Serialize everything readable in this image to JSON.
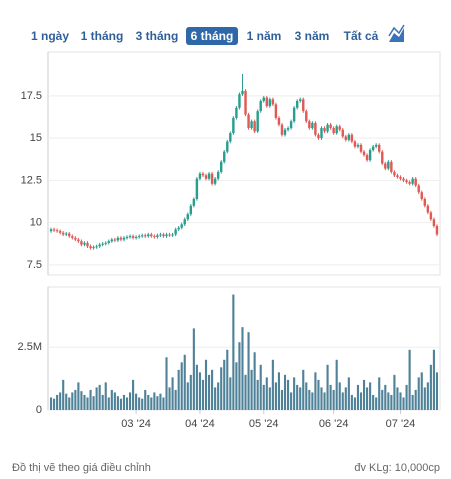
{
  "range_buttons": [
    "1 ngày",
    "1 tháng",
    "3 tháng",
    "6 tháng",
    "1 năm",
    "3 năm",
    "Tất cả"
  ],
  "active_button": 3,
  "footer": {
    "note": "Đồ thị vẽ theo giá điều chỉnh",
    "unit": "đv KLg: 10,000cp"
  },
  "chart_data": [
    {
      "type": "candlestick",
      "up_color": "#2a9d8f",
      "down_color": "#e05a55",
      "grid": true,
      "xlim": [
        -1,
        128
      ],
      "ylim": [
        6.9,
        20.1
      ],
      "yticks": [
        7.5,
        10,
        12.5,
        15,
        17.5
      ],
      "open": [
        9.5,
        9.6,
        9.55,
        9.5,
        9.4,
        9.3,
        9.35,
        9.2,
        9.1,
        9.0,
        8.9,
        8.7,
        8.8,
        8.6,
        8.5,
        8.55,
        8.6,
        8.7,
        8.75,
        8.8,
        8.9,
        9.0,
        8.95,
        9.1,
        9.0,
        9.1,
        9.15,
        9.2,
        9.1,
        9.15,
        9.2,
        9.25,
        9.2,
        9.3,
        9.2,
        9.15,
        9.25,
        9.3,
        9.2,
        9.3,
        9.25,
        9.3,
        9.6,
        9.7,
        9.9,
        10.2,
        10.5,
        11.0,
        11.4,
        12.6,
        12.9,
        12.8,
        12.6,
        12.9,
        12.3,
        12.6,
        13.0,
        13.6,
        14.2,
        14.8,
        15.3,
        16.2,
        16.8,
        17.6,
        17.8,
        16.4,
        15.6,
        16.0,
        15.4,
        16.6,
        17.2,
        17.4,
        16.9,
        17.3,
        17.0,
        16.2,
        15.8,
        15.2,
        15.5,
        15.6,
        16.0,
        16.8,
        17.2,
        17.3,
        16.6,
        16.0,
        15.6,
        15.9,
        15.2,
        15.0,
        15.6,
        15.4,
        15.8,
        15.6,
        15.3,
        15.7,
        15.5,
        15.1,
        14.9,
        15.2,
        14.8,
        14.5,
        14.6,
        14.2,
        14.0,
        13.7,
        14.3,
        14.5,
        14.6,
        14.2,
        13.5,
        13.2,
        13.6,
        13.0,
        12.8,
        12.7,
        12.6,
        12.5,
        12.4,
        12.3,
        12.6,
        12.2,
        11.8,
        11.4,
        11.0,
        10.6,
        10.2,
        9.8
      ],
      "high": [
        9.7,
        9.7,
        9.65,
        9.6,
        9.5,
        9.45,
        9.45,
        9.3,
        9.2,
        9.1,
        9.0,
        8.9,
        8.9,
        8.7,
        8.65,
        8.7,
        8.8,
        8.85,
        8.9,
        9.0,
        9.1,
        9.1,
        9.2,
        9.2,
        9.2,
        9.25,
        9.3,
        9.3,
        9.25,
        9.3,
        9.35,
        9.35,
        9.4,
        9.4,
        9.3,
        9.35,
        9.4,
        9.4,
        9.4,
        9.4,
        9.4,
        9.7,
        9.8,
        10.0,
        10.3,
        10.6,
        11.1,
        11.5,
        12.7,
        13.0,
        13.0,
        12.9,
        13.0,
        13.0,
        12.7,
        13.1,
        13.7,
        14.3,
        14.9,
        15.4,
        16.3,
        16.9,
        17.7,
        18.8,
        17.9,
        16.5,
        16.1,
        16.1,
        16.7,
        17.3,
        17.5,
        17.5,
        17.4,
        17.4,
        17.1,
        16.3,
        15.9,
        15.6,
        15.7,
        16.1,
        16.9,
        17.3,
        17.4,
        17.4,
        16.7,
        16.1,
        16.0,
        16.0,
        15.3,
        15.7,
        15.7,
        15.9,
        15.9,
        15.7,
        15.8,
        15.8,
        15.6,
        15.2,
        15.3,
        15.3,
        14.9,
        14.7,
        14.7,
        14.3,
        14.1,
        14.4,
        14.6,
        14.7,
        14.7,
        14.3,
        13.6,
        13.7,
        13.7,
        13.1,
        12.9,
        12.8,
        12.7,
        12.6,
        12.5,
        12.7,
        12.7,
        12.3,
        11.9,
        11.5,
        11.1,
        10.7,
        10.3,
        9.9
      ],
      "low": [
        9.4,
        9.45,
        9.4,
        9.3,
        9.2,
        9.2,
        9.1,
        9.0,
        8.9,
        8.8,
        8.6,
        8.6,
        8.5,
        8.4,
        8.4,
        8.45,
        8.5,
        8.6,
        8.65,
        8.7,
        8.8,
        8.85,
        8.85,
        8.9,
        8.9,
        9.0,
        9.05,
        9.0,
        9.0,
        9.05,
        9.1,
        9.1,
        9.1,
        9.1,
        9.05,
        9.05,
        9.15,
        9.1,
        9.1,
        9.15,
        9.15,
        9.2,
        9.5,
        9.6,
        9.8,
        10.1,
        10.4,
        10.9,
        11.3,
        12.5,
        12.7,
        12.5,
        12.5,
        12.2,
        12.2,
        12.5,
        12.9,
        13.5,
        14.1,
        14.7,
        15.2,
        16.1,
        16.7,
        17.5,
        16.3,
        15.5,
        15.5,
        15.3,
        15.3,
        16.5,
        17.1,
        16.8,
        16.8,
        16.9,
        16.1,
        15.7,
        15.1,
        15.1,
        15.4,
        15.5,
        15.9,
        16.7,
        17.1,
        16.5,
        15.9,
        15.5,
        15.5,
        15.1,
        14.9,
        14.9,
        15.3,
        15.3,
        15.5,
        15.2,
        15.2,
        15.4,
        15.0,
        14.8,
        14.8,
        14.7,
        14.4,
        14.4,
        14.1,
        13.9,
        13.6,
        13.6,
        14.2,
        14.4,
        14.1,
        13.4,
        13.1,
        13.1,
        12.9,
        12.7,
        12.6,
        12.5,
        12.4,
        12.3,
        12.2,
        12.2,
        12.1,
        11.7,
        11.3,
        10.9,
        10.5,
        10.1,
        9.7,
        9.2
      ],
      "close": [
        9.6,
        9.55,
        9.5,
        9.4,
        9.3,
        9.35,
        9.2,
        9.1,
        9.0,
        8.9,
        8.7,
        8.8,
        8.6,
        8.5,
        8.55,
        8.6,
        8.7,
        8.75,
        8.8,
        8.9,
        9.0,
        8.95,
        9.1,
        9.0,
        9.1,
        9.15,
        9.2,
        9.1,
        9.15,
        9.2,
        9.25,
        9.2,
        9.3,
        9.2,
        9.15,
        9.25,
        9.3,
        9.2,
        9.3,
        9.25,
        9.3,
        9.6,
        9.7,
        9.9,
        10.2,
        10.5,
        11.0,
        11.4,
        12.6,
        12.9,
        12.8,
        12.6,
        12.9,
        12.3,
        12.6,
        13.0,
        13.6,
        14.2,
        14.8,
        15.3,
        16.2,
        16.8,
        17.6,
        17.8,
        16.4,
        15.6,
        16.0,
        15.4,
        16.6,
        17.2,
        17.4,
        16.9,
        17.3,
        17.0,
        16.2,
        15.8,
        15.2,
        15.5,
        15.6,
        16.0,
        16.8,
        17.2,
        17.3,
        16.6,
        16.0,
        15.6,
        15.9,
        15.2,
        15.0,
        15.6,
        15.4,
        15.8,
        15.6,
        15.3,
        15.7,
        15.5,
        15.1,
        14.9,
        15.2,
        14.8,
        14.5,
        14.6,
        14.2,
        14.0,
        13.7,
        14.3,
        14.5,
        14.6,
        14.2,
        13.5,
        13.2,
        13.6,
        13.0,
        12.8,
        12.7,
        12.6,
        12.5,
        12.4,
        12.3,
        12.6,
        12.2,
        11.8,
        11.4,
        11.0,
        10.6,
        10.2,
        9.8,
        9.3
      ]
    },
    {
      "type": "bar",
      "color": "#4f8298",
      "xlim": [
        -1,
        128
      ],
      "ylim": [
        0,
        4900000
      ],
      "yticks": [
        0,
        {
          "value": 2500000,
          "label": "2.5M"
        }
      ],
      "xticks": [
        {
          "value": 28,
          "label": "03 '24"
        },
        {
          "value": 49,
          "label": "04 '24"
        },
        {
          "value": 70,
          "label": "05 '24"
        },
        {
          "value": 93,
          "label": "06 '24"
        },
        {
          "value": 115,
          "label": "07 '24"
        }
      ],
      "values": [
        500000,
        450000,
        600000,
        700000,
        1200000,
        650000,
        500000,
        700000,
        800000,
        1100000,
        750000,
        600000,
        500000,
        800000,
        550000,
        900000,
        1000000,
        600000,
        1100000,
        500000,
        800000,
        700000,
        550000,
        450000,
        600000,
        500000,
        700000,
        1200000,
        650000,
        500000,
        450000,
        800000,
        600000,
        500000,
        700000,
        550000,
        650000,
        500000,
        2100000,
        900000,
        1300000,
        800000,
        1600000,
        1900000,
        2200000,
        1100000,
        1400000,
        3250000,
        1800000,
        1500000,
        1200000,
        2000000,
        1400000,
        1600000,
        900000,
        1100000,
        1700000,
        2000000,
        2400000,
        1300000,
        4600000,
        1900000,
        2700000,
        3300000,
        1400000,
        3100000,
        1600000,
        2300000,
        1200000,
        1800000,
        1000000,
        1300000,
        900000,
        2000000,
        1100000,
        1500000,
        800000,
        1400000,
        1200000,
        700000,
        1300000,
        1000000,
        900000,
        1600000,
        1100000,
        800000,
        700000,
        1500000,
        1200000,
        900000,
        700000,
        1800000,
        1000000,
        800000,
        2000000,
        1100000,
        700000,
        900000,
        1300000,
        600000,
        500000,
        1000000,
        700000,
        1200000,
        900000,
        1100000,
        600000,
        500000,
        1300000,
        800000,
        1000000,
        700000,
        600000,
        1400000,
        900000,
        700000,
        500000,
        1000000,
        2400000,
        600000,
        800000,
        1300000,
        1500000,
        900000,
        1100000,
        1800000,
        2400000,
        1500000
      ]
    }
  ]
}
